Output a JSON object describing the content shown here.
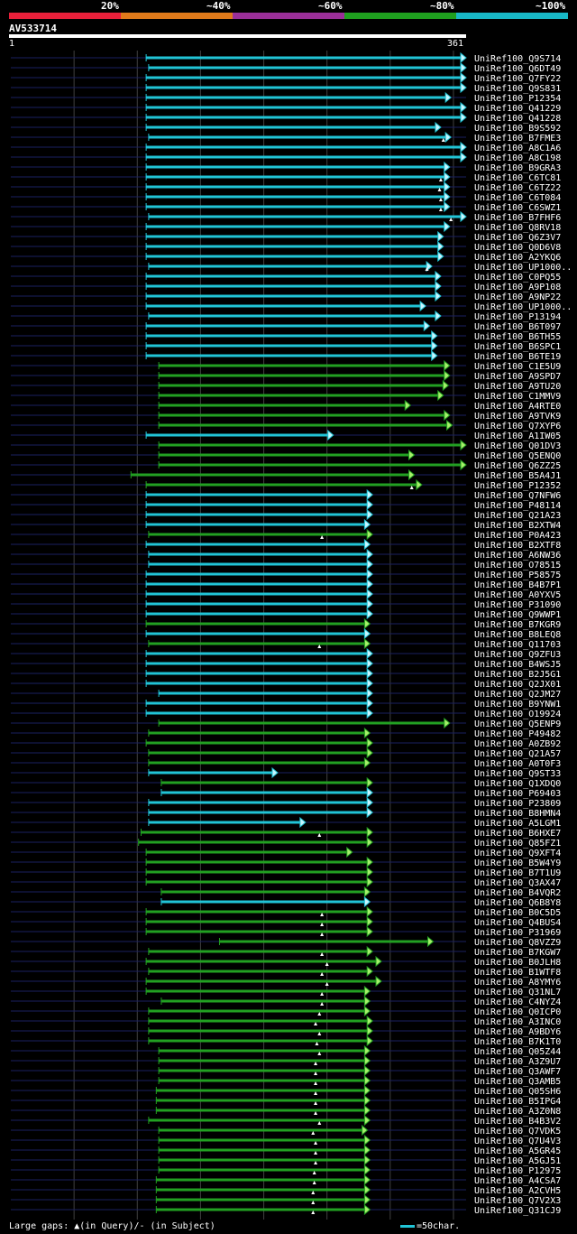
{
  "legend": {
    "labels": [
      "20%",
      "~40%",
      "~60%",
      "~80%",
      "~100%"
    ],
    "colors": [
      "#e8203a",
      "#e07a1a",
      "#9a2f98",
      "#1fa01f",
      "#18b8c6"
    ]
  },
  "query": {
    "name": "AV533714",
    "length_label": "361",
    "start_label": "1"
  },
  "footer": {
    "gaps_text": "Large gaps: ▲(in Query)/- (in Subject)",
    "scale_text": "=50char."
  },
  "colors": {
    "cyan": "#21c4d6",
    "green": "#22a022",
    "arrow_green": "#a6f06a",
    "arrow_cyan": "#c8f6ff",
    "navy": "#1a2060",
    "grid": "#404040"
  },
  "hits": [
    {
      "name": "UniRef100_Q9S714",
      "c": "cyan",
      "s": 108,
      "e": 361,
      "g": []
    },
    {
      "name": "UniRef100_Q6DT49",
      "c": "cyan",
      "s": 110,
      "e": 361,
      "g": []
    },
    {
      "name": "UniRef100_Q7FY22",
      "c": "cyan",
      "s": 108,
      "e": 361,
      "g": []
    },
    {
      "name": "UniRef100_Q9S831",
      "c": "cyan",
      "s": 108,
      "e": 361,
      "g": []
    },
    {
      "name": "UniRef100_P12354",
      "c": "cyan",
      "s": 108,
      "e": 349,
      "g": []
    },
    {
      "name": "UniRef100_Q41229",
      "c": "cyan",
      "s": 108,
      "e": 361,
      "g": []
    },
    {
      "name": "UniRef100_Q41228",
      "c": "cyan",
      "s": 108,
      "e": 361,
      "g": []
    },
    {
      "name": "UniRef100_B9S592",
      "c": "cyan",
      "s": 108,
      "e": 341,
      "g": []
    },
    {
      "name": "UniRef100_B7FME3",
      "c": "cyan",
      "s": 110,
      "e": 349,
      "g": [
        343
      ]
    },
    {
      "name": "UniRef100_A8C1A6",
      "c": "cyan",
      "s": 108,
      "e": 361,
      "g": []
    },
    {
      "name": "UniRef100_A8C198",
      "c": "cyan",
      "s": 108,
      "e": 361,
      "g": []
    },
    {
      "name": "UniRef100_B9GRA3",
      "c": "cyan",
      "s": 108,
      "e": 348,
      "g": []
    },
    {
      "name": "UniRef100_C6TC81",
      "c": "cyan",
      "s": 108,
      "e": 348,
      "g": [
        341
      ]
    },
    {
      "name": "UniRef100_C6TZ22",
      "c": "cyan",
      "s": 108,
      "e": 348,
      "g": [
        340
      ]
    },
    {
      "name": "UniRef100_C6T084",
      "c": "cyan",
      "s": 108,
      "e": 348,
      "g": [
        341
      ]
    },
    {
      "name": "UniRef100_C6SWZ1",
      "c": "cyan",
      "s": 108,
      "e": 348,
      "g": [
        341
      ]
    },
    {
      "name": "UniRef100_B7FHF6",
      "c": "cyan",
      "s": 110,
      "e": 361,
      "g": [
        349
      ]
    },
    {
      "name": "UniRef100_Q8RV18",
      "c": "cyan",
      "s": 108,
      "e": 348,
      "g": []
    },
    {
      "name": "UniRef100_Q6Z3V7",
      "c": "cyan",
      "s": 108,
      "e": 343,
      "g": []
    },
    {
      "name": "UniRef100_Q0D6V8",
      "c": "cyan",
      "s": 108,
      "e": 343,
      "g": []
    },
    {
      "name": "UniRef100_A2YKQ6",
      "c": "cyan",
      "s": 108,
      "e": 343,
      "g": []
    },
    {
      "name": "UniRef100_UP1000..",
      "c": "cyan",
      "s": 110,
      "e": 334,
      "g": [
        330
      ]
    },
    {
      "name": "UniRef100_C0PQ55",
      "c": "cyan",
      "s": 108,
      "e": 341,
      "g": []
    },
    {
      "name": "UniRef100_A9P108",
      "c": "cyan",
      "s": 108,
      "e": 341,
      "g": []
    },
    {
      "name": "UniRef100_A9NP22",
      "c": "cyan",
      "s": 108,
      "e": 341,
      "g": []
    },
    {
      "name": "UniRef100_UP1000..",
      "c": "cyan",
      "s": 108,
      "e": 329,
      "g": []
    },
    {
      "name": "UniRef100_P13194",
      "c": "cyan",
      "s": 110,
      "e": 341,
      "g": []
    },
    {
      "name": "UniRef100_B6T097",
      "c": "cyan",
      "s": 108,
      "e": 332,
      "g": []
    },
    {
      "name": "UniRef100_B6TH55",
      "c": "cyan",
      "s": 108,
      "e": 338,
      "g": []
    },
    {
      "name": "UniRef100_B6SPC1",
      "c": "cyan",
      "s": 108,
      "e": 338,
      "g": []
    },
    {
      "name": "UniRef100_B6TE19",
      "c": "cyan",
      "s": 108,
      "e": 338,
      "g": []
    },
    {
      "name": "UniRef100_C1E5U9",
      "c": "green",
      "s": 118,
      "e": 348,
      "g": []
    },
    {
      "name": "UniRef100_A9SPD7",
      "c": "green",
      "s": 118,
      "e": 348,
      "g": []
    },
    {
      "name": "UniRef100_A9TU20",
      "c": "green",
      "s": 118,
      "e": 347,
      "g": []
    },
    {
      "name": "UniRef100_C1MMV9",
      "c": "green",
      "s": 118,
      "e": 343,
      "g": []
    },
    {
      "name": "UniRef100_A4RTE0",
      "c": "green",
      "s": 118,
      "e": 317,
      "g": []
    },
    {
      "name": "UniRef100_A9TVK9",
      "c": "green",
      "s": 118,
      "e": 348,
      "g": []
    },
    {
      "name": "UniRef100_Q7XYP6",
      "c": "green",
      "s": 118,
      "e": 350,
      "g": []
    },
    {
      "name": "UniRef100_A1IW05",
      "c": "cyan",
      "s": 108,
      "e": 256,
      "g": []
    },
    {
      "name": "UniRef100_Q01DV3",
      "c": "green",
      "s": 118,
      "e": 361,
      "g": []
    },
    {
      "name": "UniRef100_Q5ENQ0",
      "c": "green",
      "s": 118,
      "e": 320,
      "g": []
    },
    {
      "name": "UniRef100_Q6ZZ25",
      "c": "green",
      "s": 118,
      "e": 361,
      "g": []
    },
    {
      "name": "UniRef100_B5A4J1",
      "c": "green",
      "s": 96,
      "e": 320,
      "g": []
    },
    {
      "name": "UniRef100_P12352",
      "c": "green",
      "s": 108,
      "e": 326,
      "g": [
        318
      ]
    },
    {
      "name": "UniRef100_Q7NFW6",
      "c": "cyan",
      "s": 108,
      "e": 287,
      "g": []
    },
    {
      "name": "UniRef100_P48114",
      "c": "cyan",
      "s": 108,
      "e": 287,
      "g": []
    },
    {
      "name": "UniRef100_Q21A23",
      "c": "cyan",
      "s": 108,
      "e": 287,
      "g": []
    },
    {
      "name": "UniRef100_B2XTW4",
      "c": "cyan",
      "s": 108,
      "e": 285,
      "g": []
    },
    {
      "name": "UniRef100_P0A423",
      "c": "green",
      "s": 110,
      "e": 287,
      "g": [
        247
      ]
    },
    {
      "name": "UniRef100_B2XTF8",
      "c": "cyan",
      "s": 108,
      "e": 285,
      "g": []
    },
    {
      "name": "UniRef100_A6NW36",
      "c": "cyan",
      "s": 110,
      "e": 287,
      "g": []
    },
    {
      "name": "UniRef100_O78515",
      "c": "cyan",
      "s": 110,
      "e": 287,
      "g": []
    },
    {
      "name": "UniRef100_P58575",
      "c": "cyan",
      "s": 108,
      "e": 287,
      "g": []
    },
    {
      "name": "UniRef100_B4B7P1",
      "c": "cyan",
      "s": 108,
      "e": 287,
      "g": []
    },
    {
      "name": "UniRef100_A0YXV5",
      "c": "cyan",
      "s": 108,
      "e": 287,
      "g": []
    },
    {
      "name": "UniRef100_P31090",
      "c": "cyan",
      "s": 108,
      "e": 287,
      "g": []
    },
    {
      "name": "UniRef100_Q9WWP1",
      "c": "cyan",
      "s": 108,
      "e": 287,
      "g": []
    },
    {
      "name": "UniRef100_B7KGR9",
      "c": "green",
      "s": 108,
      "e": 285,
      "g": []
    },
    {
      "name": "UniRef100_B8LEQ8",
      "c": "cyan",
      "s": 108,
      "e": 285,
      "g": []
    },
    {
      "name": "UniRef100_Q11703",
      "c": "green",
      "s": 110,
      "e": 285,
      "g": [
        245
      ]
    },
    {
      "name": "UniRef100_Q9ZFU3",
      "c": "cyan",
      "s": 108,
      "e": 287,
      "g": []
    },
    {
      "name": "UniRef100_B4WSJ5",
      "c": "cyan",
      "s": 108,
      "e": 287,
      "g": []
    },
    {
      "name": "UniRef100_B2J5G1",
      "c": "cyan",
      "s": 108,
      "e": 287,
      "g": []
    },
    {
      "name": "UniRef100_Q2JX01",
      "c": "cyan",
      "s": 108,
      "e": 287,
      "g": []
    },
    {
      "name": "UniRef100_Q2JM27",
      "c": "cyan",
      "s": 118,
      "e": 287,
      "g": []
    },
    {
      "name": "UniRef100_B9YNW1",
      "c": "cyan",
      "s": 108,
      "e": 287,
      "g": []
    },
    {
      "name": "UniRef100_O19924",
      "c": "cyan",
      "s": 108,
      "e": 287,
      "g": []
    },
    {
      "name": "UniRef100_Q5ENP9",
      "c": "green",
      "s": 118,
      "e": 348,
      "g": []
    },
    {
      "name": "UniRef100_P49482",
      "c": "green",
      "s": 110,
      "e": 285,
      "g": []
    },
    {
      "name": "UniRef100_A0ZB92",
      "c": "green",
      "s": 108,
      "e": 287,
      "g": []
    },
    {
      "name": "UniRef100_Q21A57",
      "c": "green",
      "s": 110,
      "e": 287,
      "g": []
    },
    {
      "name": "UniRef100_A0T0F3",
      "c": "green",
      "s": 110,
      "e": 285,
      "g": []
    },
    {
      "name": "UniRef100_Q9ST33",
      "c": "cyan",
      "s": 110,
      "e": 212,
      "g": []
    },
    {
      "name": "UniRef100_Q1XDQ0",
      "c": "green",
      "s": 120,
      "e": 287,
      "g": []
    },
    {
      "name": "UniRef100_P69403",
      "c": "cyan",
      "s": 120,
      "e": 287,
      "g": []
    },
    {
      "name": "UniRef100_P23809",
      "c": "cyan",
      "s": 110,
      "e": 287,
      "g": []
    },
    {
      "name": "UniRef100_B8HMN4",
      "c": "cyan",
      "s": 110,
      "e": 287,
      "g": []
    },
    {
      "name": "UniRef100_A5LGM1",
      "c": "cyan",
      "s": 110,
      "e": 234,
      "g": []
    },
    {
      "name": "UniRef100_B6HXE7",
      "c": "green",
      "s": 104,
      "e": 287,
      "g": [
        245
      ]
    },
    {
      "name": "UniRef100_Q85FZ1",
      "c": "green",
      "s": 102,
      "e": 287,
      "g": []
    },
    {
      "name": "UniRef100_Q9XFT4",
      "c": "green",
      "s": 108,
      "e": 271,
      "g": []
    },
    {
      "name": "UniRef100_B5W4Y9",
      "c": "green",
      "s": 108,
      "e": 287,
      "g": []
    },
    {
      "name": "UniRef100_B7T1U9",
      "c": "green",
      "s": 108,
      "e": 287,
      "g": []
    },
    {
      "name": "UniRef100_Q3AX47",
      "c": "green",
      "s": 108,
      "e": 287,
      "g": []
    },
    {
      "name": "UniRef100_B4VQR2",
      "c": "green",
      "s": 120,
      "e": 285,
      "g": []
    },
    {
      "name": "UniRef100_Q6B8Y8",
      "c": "cyan",
      "s": 120,
      "e": 285,
      "g": []
    },
    {
      "name": "UniRef100_B0C5D5",
      "c": "green",
      "s": 108,
      "e": 287,
      "g": [
        247
      ]
    },
    {
      "name": "UniRef100_Q4BUS4",
      "c": "green",
      "s": 108,
      "e": 287,
      "g": [
        247
      ]
    },
    {
      "name": "UniRef100_P31969",
      "c": "green",
      "s": 108,
      "e": 287,
      "g": [
        247
      ]
    },
    {
      "name": "UniRef100_Q8VZZ9",
      "c": "green",
      "s": 166,
      "e": 335,
      "g": []
    },
    {
      "name": "UniRef100_B7KGW7",
      "c": "green",
      "s": 110,
      "e": 287,
      "g": [
        247
      ]
    },
    {
      "name": "UniRef100_B0JLH8",
      "c": "green",
      "s": 108,
      "e": 294,
      "g": [
        251
      ]
    },
    {
      "name": "UniRef100_B1WTF8",
      "c": "green",
      "s": 110,
      "e": 287,
      "g": [
        247
      ]
    },
    {
      "name": "UniRef100_A8YMY6",
      "c": "green",
      "s": 108,
      "e": 294,
      "g": [
        251
      ]
    },
    {
      "name": "UniRef100_Q31NL7",
      "c": "green",
      "s": 108,
      "e": 285,
      "g": [
        247
      ]
    },
    {
      "name": "UniRef100_C4NYZ4",
      "c": "green",
      "s": 120,
      "e": 285,
      "g": [
        247
      ]
    },
    {
      "name": "UniRef100_Q0ICP0",
      "c": "green",
      "s": 110,
      "e": 285,
      "g": [
        245
      ]
    },
    {
      "name": "UniRef100_A3INC0",
      "c": "green",
      "s": 110,
      "e": 287,
      "g": [
        242
      ]
    },
    {
      "name": "UniRef100_A9BDY6",
      "c": "green",
      "s": 110,
      "e": 287,
      "g": [
        245
      ]
    },
    {
      "name": "UniRef100_B7K1T0",
      "c": "green",
      "s": 110,
      "e": 287,
      "g": [
        243
      ]
    },
    {
      "name": "UniRef100_Q05Z44",
      "c": "green",
      "s": 118,
      "e": 285,
      "g": [
        245
      ]
    },
    {
      "name": "UniRef100_A3Z9U7",
      "c": "green",
      "s": 118,
      "e": 285,
      "g": [
        242
      ]
    },
    {
      "name": "UniRef100_Q3AWF7",
      "c": "green",
      "s": 118,
      "e": 285,
      "g": [
        242
      ]
    },
    {
      "name": "UniRef100_Q3AMB5",
      "c": "green",
      "s": 118,
      "e": 285,
      "g": [
        242
      ]
    },
    {
      "name": "UniRef100_Q05SH6",
      "c": "green",
      "s": 116,
      "e": 285,
      "g": [
        242
      ]
    },
    {
      "name": "UniRef100_B5IPG4",
      "c": "green",
      "s": 116,
      "e": 285,
      "g": [
        242
      ]
    },
    {
      "name": "UniRef100_A3Z0N8",
      "c": "green",
      "s": 116,
      "e": 285,
      "g": [
        242
      ]
    },
    {
      "name": "UniRef100_B4B3V2",
      "c": "green",
      "s": 110,
      "e": 285,
      "g": [
        245
      ]
    },
    {
      "name": "UniRef100_Q7VDK5",
      "c": "green",
      "s": 118,
      "e": 283,
      "g": [
        240
      ]
    },
    {
      "name": "UniRef100_Q7U4V3",
      "c": "green",
      "s": 118,
      "e": 285,
      "g": [
        242
      ]
    },
    {
      "name": "UniRef100_A5GR45",
      "c": "green",
      "s": 118,
      "e": 285,
      "g": [
        242
      ]
    },
    {
      "name": "UniRef100_A5GJ51",
      "c": "green",
      "s": 118,
      "e": 285,
      "g": [
        242
      ]
    },
    {
      "name": "UniRef100_P12975",
      "c": "green",
      "s": 118,
      "e": 285,
      "g": [
        241
      ]
    },
    {
      "name": "UniRef100_A4CSA7",
      "c": "green",
      "s": 116,
      "e": 285,
      "g": [
        241
      ]
    },
    {
      "name": "UniRef100_A2CVH5",
      "c": "green",
      "s": 116,
      "e": 285,
      "g": [
        240
      ]
    },
    {
      "name": "UniRef100_Q7V2X3",
      "c": "green",
      "s": 116,
      "e": 285,
      "g": [
        240
      ]
    },
    {
      "name": "UniRef100_Q31CJ9",
      "c": "green",
      "s": 116,
      "e": 285,
      "g": [
        240
      ]
    }
  ]
}
